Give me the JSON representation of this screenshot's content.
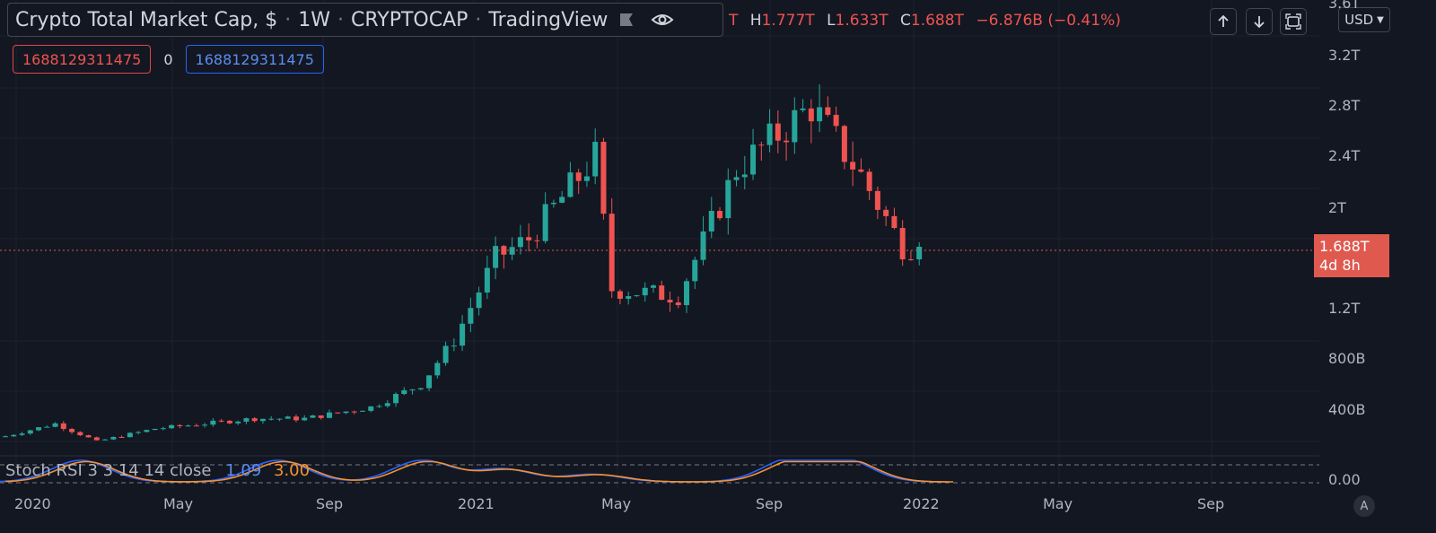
{
  "header": {
    "title": "Crypto Total Market Cap, $",
    "interval": "1W",
    "symbol": "CRYPTOCAP",
    "source": "TradingView",
    "ohlc_partial": "T",
    "high_key": "H",
    "high": "1.777T",
    "low_key": "L",
    "low": "1.633T",
    "close_key": "C",
    "close": "1.688T",
    "change": "−6.876B (−0.41%)"
  },
  "value_boxes": {
    "red": "1688129311475",
    "middle": "0",
    "blue": "1688129311475"
  },
  "toolbar": {
    "currency": "USD"
  },
  "price_tag": {
    "value": "1.688T",
    "countdown": "4d 8h"
  },
  "stoch": {
    "label": "Stoch RSI 3 3 14 14 close",
    "k": "1.09",
    "d": "3.00",
    "axis_label": "0.00"
  },
  "auto_button": "A",
  "colors": {
    "up": "#26a69a",
    "down": "#ef5350",
    "background": "#131722",
    "k_line": "#2962ff",
    "d_line": "#f5922f"
  },
  "chart_data": {
    "type": "candlestick",
    "y_ticks": [
      "3.6T",
      "3.2T",
      "2.8T",
      "2.4T",
      "2T",
      "1.2T",
      "800B",
      "400B"
    ],
    "x_ticks": [
      "2020",
      "May",
      "Sep",
      "2021",
      "May",
      "Sep",
      "2022",
      "May",
      "Sep"
    ],
    "current_price": 1.688,
    "ylim": [
      0,
      3.6
    ],
    "keypoints": [
      {
        "date": "2019-12-30",
        "close": 0.19
      },
      {
        "date": "2020-02-10",
        "close": 0.29
      },
      {
        "date": "2020-03-16",
        "close": 0.15
      },
      {
        "date": "2020-05-04",
        "close": 0.25
      },
      {
        "date": "2020-07-27",
        "close": 0.33
      },
      {
        "date": "2020-09-07",
        "close": 0.33
      },
      {
        "date": "2020-11-02",
        "close": 0.42
      },
      {
        "date": "2020-12-14",
        "close": 0.6
      },
      {
        "date": "2021-01-11",
        "close": 0.95
      },
      {
        "date": "2021-02-15",
        "close": 1.6
      },
      {
        "date": "2021-03-15",
        "close": 1.75
      },
      {
        "date": "2021-05-10",
        "close": 2.4
      },
      {
        "date": "2021-05-24",
        "close": 1.35
      },
      {
        "date": "2021-07-19",
        "close": 1.3
      },
      {
        "date": "2021-09-06",
        "close": 2.3
      },
      {
        "date": "2021-11-08",
        "close": 2.8
      },
      {
        "date": "2021-12-20",
        "close": 2.25
      },
      {
        "date": "2022-01-24",
        "close": 1.69
      },
      {
        "date": "2022-02-07",
        "close": 1.688
      }
    ],
    "stoch_rsi": {
      "k": 1.09,
      "d": 3.0
    }
  }
}
